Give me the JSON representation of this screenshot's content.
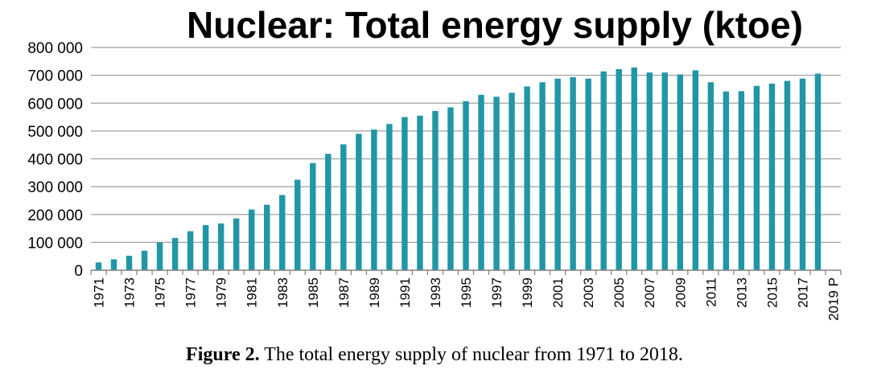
{
  "chart_data": {
    "type": "bar",
    "title": "Nuclear: Total energy supply (ktoe)",
    "xlabel": "",
    "ylabel": "",
    "ylim": [
      0,
      800000
    ],
    "yticks": [
      0,
      100000,
      200000,
      300000,
      400000,
      500000,
      600000,
      700000,
      800000
    ],
    "ytick_labels": [
      "0",
      "100 000",
      "200 000",
      "300 000",
      "400 000",
      "500 000",
      "600 000",
      "700 000",
      "800 000"
    ],
    "grid": true,
    "bar_color": "#2196a6",
    "categories": [
      "1971",
      "1972",
      "1973",
      "1974",
      "1975",
      "1976",
      "1977",
      "1978",
      "1979",
      "1980",
      "1981",
      "1982",
      "1983",
      "1984",
      "1985",
      "1986",
      "1987",
      "1988",
      "1989",
      "1990",
      "1991",
      "1992",
      "1993",
      "1994",
      "1995",
      "1996",
      "1997",
      "1998",
      "1999",
      "2000",
      "2001",
      "2002",
      "2003",
      "2004",
      "2005",
      "2006",
      "2007",
      "2008",
      "2009",
      "2010",
      "2011",
      "2012",
      "2013",
      "2014",
      "2015",
      "2016",
      "2017",
      "2018",
      "2019 P"
    ],
    "xtick_labels": [
      "1971",
      "",
      "1973",
      "",
      "1975",
      "",
      "1977",
      "",
      "1979",
      "",
      "1981",
      "",
      "1983",
      "",
      "1985",
      "",
      "1987",
      "",
      "1989",
      "",
      "1991",
      "",
      "1993",
      "",
      "1995",
      "",
      "1997",
      "",
      "1999",
      "",
      "2001",
      "",
      "2003",
      "",
      "2005",
      "",
      "2007",
      "",
      "2009",
      "",
      "2011",
      "",
      "2013",
      "",
      "2015",
      "",
      "2017",
      "",
      "2019 P"
    ],
    "values": [
      28000,
      39000,
      52000,
      70000,
      100000,
      116000,
      140000,
      162000,
      168000,
      186000,
      218000,
      235000,
      270000,
      325000,
      385000,
      418000,
      452000,
      490000,
      505000,
      525000,
      550000,
      555000,
      572000,
      585000,
      607000,
      630000,
      623000,
      637000,
      660000,
      675000,
      688000,
      693000,
      688000,
      714000,
      722000,
      728000,
      710000,
      710000,
      703000,
      718000,
      675000,
      642000,
      643000,
      662000,
      670000,
      680000,
      688000,
      706000,
      null
    ]
  },
  "caption": {
    "label": "Figure 2.",
    "text": " The total energy supply of nuclear from 1971 to 2018."
  }
}
